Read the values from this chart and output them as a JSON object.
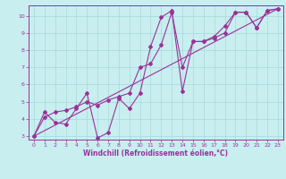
{
  "xlabel": "Windchill (Refroidissement éolien,°C)",
  "bg_color": "#c8eef0",
  "grid_color": "#a8d8d8",
  "line_color": "#993399",
  "spine_color": "#993399",
  "xlim": [
    -0.5,
    23.5
  ],
  "ylim": [
    2.8,
    10.6
  ],
  "yticks": [
    3,
    4,
    5,
    6,
    7,
    8,
    9,
    10
  ],
  "xticks": [
    0,
    1,
    2,
    3,
    4,
    5,
    6,
    7,
    8,
    9,
    10,
    11,
    12,
    13,
    14,
    15,
    16,
    17,
    18,
    19,
    20,
    21,
    22,
    23
  ],
  "tick_fontsize": 4.5,
  "xlabel_fontsize": 5.5,
  "series1_x": [
    0,
    1,
    2,
    3,
    4,
    5,
    6,
    7,
    8,
    9,
    10,
    11,
    12,
    13,
    14,
    15,
    16,
    17,
    18,
    19,
    20,
    21,
    22,
    23
  ],
  "series1_y": [
    3.0,
    4.4,
    3.8,
    3.7,
    4.6,
    5.5,
    2.9,
    3.2,
    5.2,
    4.6,
    5.5,
    8.2,
    9.9,
    10.3,
    5.6,
    8.5,
    8.5,
    8.8,
    9.4,
    10.2,
    10.2,
    9.3,
    10.3,
    10.4
  ],
  "series2_x": [
    0,
    1,
    2,
    3,
    4,
    5,
    6,
    7,
    8,
    9,
    10,
    11,
    12,
    13,
    14,
    15,
    16,
    17,
    18,
    19,
    20,
    21,
    22,
    23
  ],
  "series2_y": [
    3.0,
    4.1,
    4.4,
    4.5,
    4.7,
    5.0,
    4.8,
    5.1,
    5.3,
    5.5,
    7.0,
    7.2,
    8.3,
    10.2,
    7.0,
    8.5,
    8.5,
    8.7,
    9.0,
    10.2,
    10.2,
    9.3,
    10.3,
    10.4
  ],
  "series3_x": [
    0,
    23
  ],
  "series3_y": [
    3.0,
    10.4
  ],
  "marker_size": 2.0,
  "line_width": 0.8
}
